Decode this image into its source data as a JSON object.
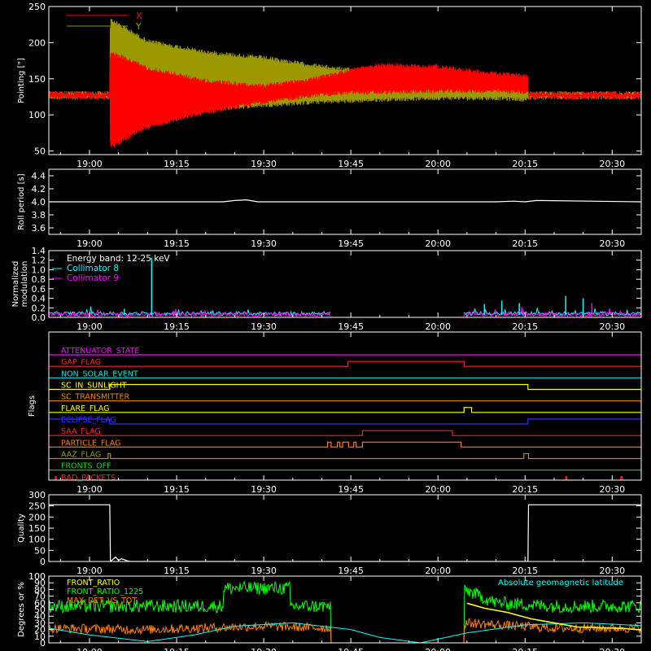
{
  "time_axis": {
    "tick_labels": [
      "19:00",
      "19:15",
      "19:30",
      "19:45",
      "20:00",
      "20:15",
      "20:30"
    ],
    "tick_minutes": [
      1140,
      1155,
      1170,
      1185,
      1200,
      1215,
      1230
    ],
    "range_minutes": [
      1133,
      1235
    ]
  },
  "chart_data": [
    {
      "id": "pointing",
      "type": "line",
      "ylabel": "Pointing [\"]",
      "ylim": [
        45,
        250
      ],
      "yticks": [
        50,
        100,
        150,
        200,
        250
      ],
      "legend_placement": "top-left",
      "series": [
        {
          "name": "X",
          "color": "#ff0000",
          "description": "oscillating envelope",
          "x": [
            1133,
            1143.5,
            1143.6,
            1150,
            1160,
            1170,
            1180,
            1185,
            1190,
            1200,
            1210,
            1215.5,
            1215.6,
            1235
          ],
          "upper": [
            127,
            127,
            190,
            168,
            150,
            143,
            155,
            165,
            172,
            170,
            160,
            157,
            127,
            127
          ],
          "lower": [
            127,
            127,
            52,
            80,
            100,
            115,
            125,
            128,
            128,
            130,
            130,
            128,
            127,
            127
          ]
        },
        {
          "name": "Y",
          "color": "#9a9a00",
          "description": "oscillating envelope",
          "x": [
            1133,
            1143.5,
            1143.6,
            1150,
            1160,
            1170,
            1180,
            1185,
            1190,
            1200,
            1210,
            1215.5,
            1215.6,
            1235
          ],
          "upper": [
            127,
            127,
            235,
            205,
            190,
            182,
            170,
            165,
            158,
            155,
            150,
            148,
            127,
            127
          ],
          "lower": [
            127,
            127,
            85,
            98,
            105,
            110,
            115,
            116,
            118,
            120,
            120,
            118,
            127,
            127
          ]
        }
      ]
    },
    {
      "id": "roll_period",
      "type": "line",
      "ylabel": "Roll period [s]",
      "ylim": [
        3.5,
        4.5
      ],
      "yticks": [
        3.6,
        3.8,
        4.0,
        4.2,
        4.4
      ],
      "series": [
        {
          "name": "",
          "color": "#ffffff",
          "x": [
            1133,
            1163,
            1165,
            1167,
            1169,
            1180,
            1210,
            1213,
            1215,
            1217,
            1235
          ],
          "values": [
            4.0,
            4.0,
            4.02,
            4.03,
            4.0,
            4.0,
            4.0,
            4.01,
            4.0,
            4.02,
            4.0
          ]
        }
      ]
    },
    {
      "id": "modulation",
      "type": "line",
      "ylabel": "Normalized\nmodulation",
      "ylim": [
        0,
        1.4
      ],
      "yticks": [
        0.0,
        0.2,
        0.4,
        0.6,
        0.8,
        1.0,
        1.2,
        1.4
      ],
      "legend_title": "Energy band: 12-25 keV",
      "legend_placement": "top-left",
      "gaps_minutes": [
        [
          1181.5,
          1204.5
        ]
      ],
      "spikes": [
        {
          "x": 1150.7,
          "value": 1.25,
          "color": "#00ffff"
        },
        {
          "x": 1146,
          "value": 0.18,
          "color": "#00ffff"
        },
        {
          "x": 1208,
          "value": 0.28,
          "color": "#00ffff"
        },
        {
          "x": 1211,
          "value": 0.35,
          "color": "#00ffff"
        },
        {
          "x": 1214,
          "value": 0.3,
          "color": "#00ffff"
        },
        {
          "x": 1222,
          "value": 0.45,
          "color": "#00ffff"
        },
        {
          "x": 1225,
          "value": 0.4,
          "color": "#00ffff"
        },
        {
          "x": 1226.5,
          "value": 0.3,
          "color": "#ff00ff"
        }
      ],
      "series": [
        {
          "name": "Collimator 8",
          "color": "#00ffff",
          "baseline": 0.08
        },
        {
          "name": "Collimator 9",
          "color": "#ff00ff",
          "baseline": 0.06
        }
      ]
    },
    {
      "id": "flags",
      "type": "line",
      "ylabel": "Flags",
      "flags": [
        {
          "name": "ATTENUATOR_STATE",
          "color": "#ff00ff",
          "on_intervals": []
        },
        {
          "name": "GAP_FLAG",
          "color": "#ff2020",
          "on_intervals": [
            [
              1184.5,
              1204.5
            ]
          ]
        },
        {
          "name": "NON_SOLAR_EVENT",
          "color": "#00e0e0",
          "on_intervals": []
        },
        {
          "name": "SC_IN_SUNLIGHT",
          "color": "#ffff00",
          "on_intervals": [
            [
              1143.5,
              1215.5
            ]
          ]
        },
        {
          "name": "SC_TRANSMITTER",
          "color": "#ff8000",
          "on_intervals": []
        },
        {
          "name": "FLARE_FLAG",
          "color": "#ffff00",
          "on_intervals": [
            [
              1204.5,
              1205.8
            ]
          ]
        },
        {
          "name": "ECLIPSE_FLAG",
          "color": "#3030ff",
          "on_intervals": [
            [
              1133,
              1143.5
            ],
            [
              1215.5,
              1235
            ]
          ]
        },
        {
          "name": "SAA_FLAG",
          "color": "#ff2020",
          "on_intervals": [
            [
              1187,
              1202.5
            ]
          ]
        },
        {
          "name": "PARTICLE_FLAG",
          "color": "#ff8000",
          "on_intervals": [
            [
              1181,
              1181.6
            ],
            [
              1182.7,
              1183.1
            ],
            [
              1183.6,
              1184.6
            ],
            [
              1185.5,
              1185.9
            ],
            [
              1187,
              1204
            ]
          ]
        },
        {
          "name": "AAZ_FLAG",
          "color": "#9a9a00",
          "on_intervals": [
            [
              1143.2,
              1143.6
            ],
            [
              1214.8,
              1215.6
            ]
          ]
        },
        {
          "name": "FRONTS_OFF",
          "color": "#00e000",
          "on_intervals": []
        },
        {
          "name": "BAD_PACKETS",
          "color": "#ff2020",
          "on_intervals": [
            [
              1134.1,
              1134.3
            ],
            [
              1222,
              1222.2
            ],
            [
              1231.5,
              1231.7
            ]
          ]
        }
      ]
    },
    {
      "id": "quality",
      "type": "line",
      "ylabel": "Quality",
      "ylim": [
        0,
        300
      ],
      "yticks": [
        0,
        50,
        100,
        150,
        200,
        250,
        300
      ],
      "series": [
        {
          "name": "",
          "color": "#ffffff",
          "x": [
            1133,
            1143.5,
            1143.6,
            1144.5,
            1145,
            1145.5,
            1146,
            1146.5,
            1147,
            1215.5,
            1215.6,
            1216,
            1235
          ],
          "values": [
            255,
            255,
            0,
            20,
            5,
            12,
            8,
            3,
            0,
            0,
            255,
            255,
            255
          ]
        }
      ]
    },
    {
      "id": "ratios",
      "type": "line",
      "ylabel": "Degrees or %",
      "ylim": [
        0,
        100
      ],
      "yticks": [
        0,
        10,
        20,
        30,
        40,
        50,
        60,
        70,
        80,
        90,
        100
      ],
      "legend_placement": "top-left",
      "annotation": {
        "text": "Absolute geomagnetic latitude",
        "color": "#00ffff"
      },
      "series": [
        {
          "name": "FRONT_RATIO",
          "color": "#ffff00",
          "x": [
            1205,
            1208,
            1212,
            1216,
            1220,
            1224,
            1228,
            1232,
            1235
          ],
          "values": [
            58,
            52,
            44,
            36,
            30,
            25,
            22,
            20,
            18
          ]
        },
        {
          "name": "FRONT_RATIO_1225",
          "color": "#00ff00",
          "x": [
            1133,
            1140,
            1150,
            1160,
            1163,
            1163.1,
            1170,
            1174.5,
            1174.6,
            1181.5,
            1181.6,
            1204.5,
            1204.6,
            1210,
            1220,
            1235
          ],
          "values": [
            55,
            55,
            55,
            55,
            55,
            82,
            82,
            82,
            55,
            55,
            0,
            0,
            80,
            60,
            55,
            55
          ]
        },
        {
          "name": "MAX_DET_VS_TOT",
          "color": "#ff8000",
          "x": [
            1133,
            1150,
            1170,
            1181.5,
            1181.6,
            1204.5,
            1204.6,
            1220,
            1235
          ],
          "values": [
            22,
            20,
            25,
            22,
            0,
            0,
            30,
            22,
            22
          ]
        },
        {
          "name": "Absolute geomagnetic latitude",
          "color": "#00ffff",
          "x": [
            1133,
            1140,
            1150,
            1158,
            1165,
            1175,
            1185,
            1190,
            1197,
            1205,
            1215,
            1225,
            1235
          ],
          "values": [
            22,
            12,
            2,
            12,
            25,
            30,
            20,
            8,
            0,
            15,
            27,
            30,
            26
          ]
        }
      ]
    }
  ]
}
